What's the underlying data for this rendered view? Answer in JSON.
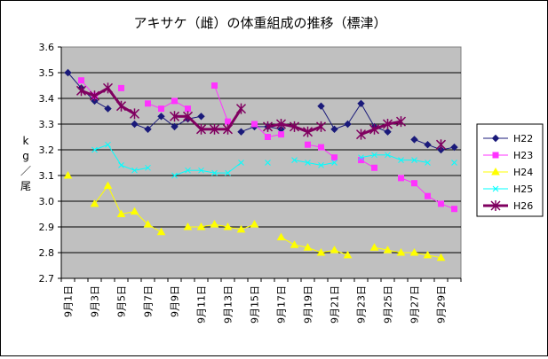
{
  "chart_data": {
    "type": "line",
    "title": "アキサケ（雌）の体重組成の推移（標津）",
    "ylabel": "kg／尾",
    "xlabel": "",
    "ylim": [
      2.7,
      3.6
    ],
    "ytick_labels": [
      "2.7",
      "2.8",
      "2.9",
      "3.0",
      "3.1",
      "3.2",
      "3.3",
      "3.4",
      "3.5",
      "3.6"
    ],
    "grid": true,
    "legend_position": "right",
    "categories": [
      "9月1日",
      "9月2日",
      "9月3日",
      "9月4日",
      "9月5日",
      "9月6日",
      "9月7日",
      "9月8日",
      "9月9日",
      "9月10日",
      "9月11日",
      "9月12日",
      "9月13日",
      "9月14日",
      "9月15日",
      "9月16日",
      "9月17日",
      "9月18日",
      "9月19日",
      "9月20日",
      "9月21日",
      "9月22日",
      "9月23日",
      "9月24日",
      "9月25日",
      "9月26日",
      "9月27日",
      "9月28日",
      "9月29日",
      "9月30日"
    ],
    "xtick_labels": [
      "9月1日",
      "9月3日",
      "9月5日",
      "9月7日",
      "9月9日",
      "9月11日",
      "9月13日",
      "9月15日",
      "9月17日",
      "9月19日",
      "9月21日",
      "9月23日",
      "9月25日",
      "9月27日",
      "9月29日"
    ],
    "series": [
      {
        "name": "H22",
        "color": "#1a1a7a",
        "marker": "diamond",
        "width": 1,
        "values": [
          3.5,
          3.44,
          3.39,
          3.36,
          null,
          3.3,
          3.28,
          3.33,
          3.29,
          3.32,
          3.33,
          null,
          null,
          3.27,
          3.29,
          3.29,
          3.28,
          null,
          null,
          3.37,
          3.28,
          3.3,
          3.38,
          3.29,
          3.27,
          null,
          3.24,
          3.22,
          3.2,
          3.21
        ]
      },
      {
        "name": "H23",
        "color": "#ff33ff",
        "marker": "square",
        "width": 1,
        "values": [
          null,
          3.47,
          3.41,
          null,
          3.44,
          null,
          3.38,
          3.36,
          3.39,
          3.36,
          null,
          3.45,
          3.31,
          null,
          3.3,
          3.25,
          3.26,
          null,
          3.22,
          3.21,
          3.17,
          null,
          3.16,
          3.13,
          null,
          3.09,
          3.07,
          3.02,
          2.99,
          2.97
        ]
      },
      {
        "name": "H24",
        "color": "#ffff00",
        "marker": "triangle",
        "width": 1,
        "values": [
          3.1,
          null,
          2.99,
          3.06,
          2.95,
          2.96,
          2.91,
          2.88,
          null,
          2.9,
          2.9,
          2.91,
          2.9,
          2.89,
          2.91,
          null,
          2.86,
          2.83,
          2.82,
          2.8,
          2.81,
          2.79,
          null,
          2.82,
          2.81,
          2.8,
          2.8,
          2.79,
          2.78,
          null
        ]
      },
      {
        "name": "H25",
        "color": "#00ffff",
        "marker": "x",
        "width": 1,
        "values": [
          null,
          null,
          3.2,
          3.22,
          3.14,
          3.12,
          3.13,
          null,
          3.1,
          3.12,
          3.12,
          3.11,
          3.11,
          3.15,
          null,
          3.15,
          null,
          3.16,
          3.15,
          3.14,
          3.15,
          null,
          3.17,
          3.18,
          3.18,
          3.16,
          3.16,
          3.15,
          null,
          3.15
        ]
      },
      {
        "name": "H26",
        "color": "#800060",
        "marker": "star",
        "width": 3,
        "values": [
          null,
          3.43,
          3.41,
          3.44,
          3.37,
          3.34,
          null,
          null,
          3.33,
          3.33,
          3.28,
          3.28,
          3.28,
          3.36,
          null,
          3.29,
          3.3,
          3.29,
          3.27,
          3.29,
          null,
          null,
          3.26,
          3.28,
          3.3,
          3.31,
          null,
          null,
          3.22,
          null
        ]
      }
    ]
  }
}
